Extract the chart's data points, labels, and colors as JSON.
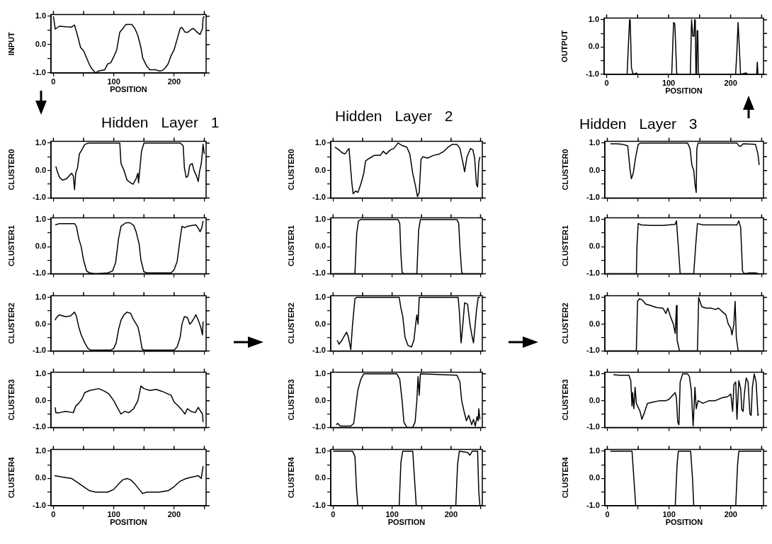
{
  "chart_data": [
    {
      "type": "line",
      "ylabel": "INPUT",
      "xlabel": "POSITION",
      "color": "#000000",
      "marker": "none",
      "xlim": [
        -4,
        253
      ],
      "ylim": [
        -1,
        1.06
      ],
      "xticks": [
        0,
        {
          "value": 50,
          "label": null
        },
        100,
        {
          "value": 150,
          "label": null
        },
        200,
        {
          "value": 250,
          "label": null
        }
      ],
      "yticks": [
        {
          "value": -1,
          "label": "-1.0"
        },
        {
          "value": -0.5,
          "label": null
        },
        {
          "value": 0,
          "label": "0.0"
        },
        {
          "value": 0.5,
          "label": null
        },
        {
          "value": 1,
          "label": "1.0"
        }
      ],
      "x": [
        0,
        3,
        10,
        20,
        30,
        35,
        40,
        45,
        50,
        55,
        60,
        65,
        70,
        75,
        85,
        90,
        95,
        100,
        105,
        110,
        115,
        120,
        130,
        135,
        140,
        145,
        148,
        155,
        160,
        170,
        175,
        180,
        185,
        190,
        195,
        200,
        205,
        210,
        213,
        218,
        223,
        228,
        232,
        238,
        243,
        247,
        248,
        250
      ],
      "values": [
        1.0,
        0.55,
        0.65,
        0.63,
        0.62,
        0.69,
        0.32,
        -0.1,
        -0.22,
        -0.47,
        -0.72,
        -0.89,
        -1.0,
        -0.93,
        -0.89,
        -0.68,
        -0.64,
        -0.43,
        -0.18,
        0.44,
        0.57,
        0.71,
        0.71,
        0.57,
        0.32,
        -0.1,
        -0.47,
        -0.77,
        -0.89,
        -0.89,
        -0.93,
        -0.92,
        -0.83,
        -0.68,
        -0.39,
        -0.18,
        0.19,
        0.57,
        0.61,
        0.44,
        0.44,
        0.53,
        0.57,
        0.44,
        0.36,
        0.57,
        0.94,
        1.0
      ]
    },
    {
      "type": "line",
      "ylabel": "OUTPUT",
      "xlabel": "POSITION",
      "color": "#000000",
      "marker": "none",
      "xlim": [
        -4,
        253
      ],
      "ylim": [
        -1,
        1.06
      ],
      "xticks": [
        0,
        {
          "value": 50,
          "label": null
        },
        100,
        {
          "value": 150,
          "label": null
        },
        200,
        {
          "value": 250,
          "label": null
        }
      ],
      "yticks": [
        {
          "value": -1,
          "label": "-1.0"
        },
        {
          "value": -0.5,
          "label": null
        },
        {
          "value": 0,
          "label": "0.0"
        },
        {
          "value": 0.5,
          "label": null
        },
        {
          "value": 1,
          "label": "1.0"
        }
      ],
      "x": [
        0,
        33,
        34,
        37,
        38,
        39,
        40,
        42,
        44,
        48,
        50,
        105,
        108,
        110,
        113,
        115,
        135,
        137,
        139,
        141,
        142,
        143,
        144,
        145,
        146,
        147,
        148,
        208,
        210,
        212,
        214,
        216,
        225,
        227,
        242,
        243,
        244,
        250
      ],
      "values": [
        -1,
        -1,
        -0.5,
        1,
        1,
        0.15,
        -0.75,
        -0.95,
        -1,
        -0.95,
        -1,
        -1,
        0.9,
        0.85,
        -0.95,
        -1,
        -1,
        1,
        0.4,
        0.4,
        1,
        1,
        -1,
        -1,
        0.6,
        0.6,
        -1,
        -1,
        -0.2,
        0.9,
        0,
        -1,
        -0.95,
        -1,
        -1,
        -0.55,
        -1,
        -1
      ]
    },
    {
      "type": "line",
      "title": "Hidden Layer 1",
      "ylabel": "CLUSTER0",
      "tick_labels": "y",
      "color": "#000000",
      "marker": "none",
      "xlim": [
        -4,
        253
      ],
      "ylim": [
        -1,
        1.06
      ],
      "xticks": [
        0,
        {
          "value": 50,
          "label": null
        },
        100,
        {
          "value": 150,
          "label": null
        },
        200,
        {
          "value": 250,
          "label": null
        }
      ],
      "yticks": [
        {
          "value": -1,
          "label": "-1.0"
        },
        {
          "value": -0.5,
          "label": null
        },
        {
          "value": 0,
          "label": "0.0"
        },
        {
          "value": 0.5,
          "label": null
        },
        {
          "value": 1,
          "label": "1.0"
        }
      ],
      "x": [
        4,
        6,
        10,
        15,
        22,
        30,
        33,
        35,
        37,
        40,
        43,
        47,
        52,
        58,
        110,
        112,
        117,
        122,
        128,
        132,
        137,
        140,
        141,
        143,
        146,
        150,
        210,
        215,
        217,
        220,
        223,
        226,
        230,
        233,
        237,
        240,
        242,
        245,
        248,
        250
      ],
      "values": [
        0.15,
        0,
        -0.25,
        -0.35,
        -0.3,
        -0.1,
        -0.2,
        -0.7,
        -0.1,
        0.1,
        0.6,
        0.75,
        0.95,
        1,
        1,
        0.25,
        0,
        -0.35,
        -0.45,
        -0.5,
        -0.3,
        -0.1,
        -0.45,
        0,
        0.7,
        1,
        1,
        0.9,
        0.1,
        -0.25,
        -0.2,
        0.2,
        0.25,
        0,
        -0.2,
        -0.4,
        -0.05,
        0.25,
        0.95,
        0.6
      ]
    },
    {
      "type": "line",
      "ylabel": "CLUSTER1",
      "tick_labels": "y",
      "color": "#000000",
      "marker": "none",
      "xlim": [
        -4,
        253
      ],
      "ylim": [
        -1,
        1.06
      ],
      "xticks": [
        0,
        {
          "value": 50,
          "label": null
        },
        100,
        {
          "value": 150,
          "label": null
        },
        200,
        {
          "value": 250,
          "label": null
        }
      ],
      "yticks": [
        {
          "value": -1,
          "label": "-1.0"
        },
        {
          "value": -0.5,
          "label": null
        },
        {
          "value": 0,
          "label": "0.0"
        },
        {
          "value": 0.5,
          "label": null
        },
        {
          "value": 1,
          "label": "1.0"
        }
      ],
      "x": [
        3,
        10,
        35,
        38,
        42,
        46,
        50,
        55,
        60,
        70,
        90,
        98,
        103,
        108,
        112,
        120,
        127,
        133,
        137,
        142,
        145,
        150,
        155,
        195,
        200,
        205,
        210,
        213,
        217,
        222,
        230,
        236,
        240,
        243,
        246,
        248
      ],
      "values": [
        0.8,
        0.85,
        0.85,
        0.75,
        0.3,
        0,
        -0.5,
        -0.9,
        -0.97,
        -1,
        -0.97,
        -0.9,
        -0.6,
        0.3,
        0.75,
        0.88,
        0.88,
        0.78,
        0.55,
        0.1,
        -0.5,
        -0.93,
        -0.97,
        -0.97,
        -0.85,
        -0.55,
        0.3,
        0.75,
        0.7,
        0.75,
        0.78,
        0.8,
        0.68,
        0.55,
        0.7,
        0.95
      ]
    },
    {
      "type": "line",
      "ylabel": "CLUSTER2",
      "tick_labels": "y",
      "color": "#000000",
      "marker": "none",
      "xlim": [
        -4,
        253
      ],
      "ylim": [
        -1,
        1.06
      ],
      "xticks": [
        0,
        {
          "value": 50,
          "label": null
        },
        100,
        {
          "value": 150,
          "label": null
        },
        200,
        {
          "value": 250,
          "label": null
        }
      ],
      "yticks": [
        {
          "value": -1,
          "label": "-1.0"
        },
        {
          "value": -0.5,
          "label": null
        },
        {
          "value": 0,
          "label": "0.0"
        },
        {
          "value": 0.5,
          "label": null
        },
        {
          "value": 1,
          "label": "1.0"
        }
      ],
      "x": [
        3,
        5,
        10,
        20,
        28,
        35,
        38,
        42,
        46,
        52,
        57,
        62,
        95,
        100,
        104,
        108,
        112,
        117,
        122,
        128,
        132,
        140,
        143,
        147,
        150,
        200,
        205,
        210,
        213,
        217,
        222,
        226,
        230,
        236,
        240,
        244,
        247,
        248
      ],
      "values": [
        0.15,
        0.25,
        0.35,
        0.28,
        0.3,
        0.45,
        0.3,
        -0.1,
        -0.4,
        -0.7,
        -0.9,
        -0.97,
        -0.97,
        -0.9,
        -0.7,
        -0.2,
        0.15,
        0.35,
        0.45,
        0.4,
        0.2,
        -0.1,
        -0.4,
        -0.93,
        -0.97,
        -0.97,
        -0.85,
        -0.5,
        0,
        0.28,
        0.25,
        0,
        0.1,
        0.35,
        0.15,
        -0.1,
        -0.4,
        0.1
      ]
    },
    {
      "type": "line",
      "ylabel": "CLUSTER3",
      "tick_labels": "y",
      "color": "#000000",
      "marker": "none",
      "xlim": [
        -4,
        253
      ],
      "ylim": [
        -1,
        1.06
      ],
      "xticks": [
        0,
        {
          "value": 50,
          "label": null
        },
        100,
        {
          "value": 150,
          "label": null
        },
        200,
        {
          "value": 250,
          "label": null
        }
      ],
      "yticks": [
        {
          "value": -1,
          "label": "-1.0"
        },
        {
          "value": -0.5,
          "label": null
        },
        {
          "value": 0,
          "label": "0.0"
        },
        {
          "value": 0.5,
          "label": null
        },
        {
          "value": 1,
          "label": "1.0"
        }
      ],
      "x": [
        3,
        4,
        10,
        20,
        33,
        37,
        42,
        47,
        52,
        60,
        75,
        85,
        92,
        100,
        107,
        112,
        118,
        125,
        133,
        140,
        145,
        150,
        160,
        170,
        180,
        195,
        200,
        207,
        213,
        218,
        222,
        228,
        235,
        240,
        244,
        247,
        248
      ],
      "values": [
        -0.25,
        -0.45,
        -0.45,
        -0.4,
        -0.45,
        -0.2,
        -0.1,
        0.05,
        0.3,
        0.38,
        0.45,
        0.35,
        0.25,
        0,
        -0.3,
        -0.5,
        -0.4,
        -0.45,
        -0.3,
        0,
        0.55,
        0.45,
        0.38,
        0.42,
        0.35,
        0.2,
        -0.05,
        -0.2,
        -0.35,
        -0.5,
        -0.3,
        -0.4,
        -0.45,
        -0.25,
        -0.4,
        -0.5,
        -0.8
      ]
    },
    {
      "type": "line",
      "ylabel": "CLUSTER4",
      "xlabel": "POSITION",
      "color": "#000000",
      "marker": "none",
      "xlim": [
        -4,
        253
      ],
      "ylim": [
        -1,
        1.06
      ],
      "xticks": [
        0,
        {
          "value": 50,
          "label": null
        },
        100,
        {
          "value": 150,
          "label": null
        },
        200,
        {
          "value": 250,
          "label": null
        }
      ],
      "yticks": [
        {
          "value": -1,
          "label": "-1.0"
        },
        {
          "value": -0.5,
          "label": null
        },
        {
          "value": 0,
          "label": "0.0"
        },
        {
          "value": 0.5,
          "label": null
        },
        {
          "value": 1,
          "label": "1.0"
        }
      ],
      "x": [
        2,
        15,
        30,
        40,
        50,
        60,
        70,
        90,
        100,
        108,
        115,
        122,
        128,
        135,
        142,
        148,
        155,
        175,
        190,
        200,
        210,
        220,
        230,
        240,
        245,
        248
      ],
      "values": [
        0.1,
        0.05,
        0,
        -0.15,
        -0.3,
        -0.45,
        -0.5,
        -0.5,
        -0.4,
        -0.2,
        -0.05,
        0,
        -0.05,
        -0.2,
        -0.4,
        -0.55,
        -0.5,
        -0.5,
        -0.45,
        -0.3,
        -0.1,
        0,
        0.05,
        0.1,
        0,
        0.45
      ]
    },
    {
      "type": "line",
      "title": "Hidden Layer 2",
      "ylabel": "CLUSTER0",
      "tick_labels": "y",
      "color": "#000000",
      "marker": "none",
      "xlim": [
        -4,
        253
      ],
      "ylim": [
        -1,
        1.06
      ],
      "xticks": [
        0,
        {
          "value": 50,
          "label": null
        },
        100,
        {
          "value": 150,
          "label": null
        },
        200,
        {
          "value": 250,
          "label": null
        }
      ],
      "yticks": [
        {
          "value": -1,
          "label": "-1.0"
        },
        {
          "value": -0.5,
          "label": null
        },
        {
          "value": 0,
          "label": "0.0"
        },
        {
          "value": 0.5,
          "label": null
        },
        {
          "value": 1,
          "label": "1.0"
        }
      ],
      "x": [
        3,
        10,
        15,
        20,
        25,
        27,
        30,
        32,
        34,
        38,
        42,
        47,
        52,
        55,
        62,
        70,
        80,
        85,
        90,
        97,
        103,
        110,
        118,
        125,
        130,
        135,
        140,
        143,
        146,
        149,
        152,
        160,
        170,
        180,
        188,
        195,
        202,
        210,
        215,
        220,
        223,
        227,
        233,
        237,
        240,
        243,
        245,
        247,
        249
      ],
      "values": [
        0.85,
        0.75,
        0.65,
        0.6,
        0.75,
        0.8,
        0,
        -0.5,
        -0.85,
        -0.75,
        -0.8,
        -0.5,
        -0.1,
        0.35,
        0.45,
        0.55,
        0.55,
        0.7,
        0.6,
        0.75,
        0.8,
        1,
        0.9,
        0.85,
        0.6,
        -0.1,
        -0.6,
        -0.95,
        -0.8,
        0.4,
        0.5,
        0.45,
        0.55,
        0.6,
        0.7,
        0.85,
        0.95,
        0.95,
        0.8,
        0.3,
        -0.05,
        0.5,
        0.8,
        0.75,
        0.45,
        -0.5,
        -0.6,
        0.3,
        0.5
      ]
    },
    {
      "type": "line",
      "ylabel": "CLUSTER1",
      "tick_labels": "y",
      "color": "#000000",
      "marker": "none",
      "xlim": [
        -4,
        253
      ],
      "ylim": [
        -1,
        1.06
      ],
      "xticks": [
        0,
        {
          "value": 50,
          "label": null
        },
        100,
        {
          "value": 150,
          "label": null
        },
        200,
        {
          "value": 250,
          "label": null
        }
      ],
      "yticks": [
        {
          "value": -1,
          "label": "-1.0"
        },
        {
          "value": -0.5,
          "label": null
        },
        {
          "value": 0,
          "label": "0.0"
        },
        {
          "value": 0.5,
          "label": null
        },
        {
          "value": 1,
          "label": "1.0"
        }
      ],
      "x": [
        0,
        37,
        40,
        43,
        47,
        110,
        113,
        115,
        117,
        120,
        142,
        145,
        148,
        210,
        213,
        215,
        218,
        220,
        250
      ],
      "values": [
        -1,
        -1,
        0.5,
        0.95,
        1,
        1,
        0.85,
        -0.3,
        -0.95,
        -1,
        -1,
        0.6,
        1,
        1,
        0.85,
        0,
        -0.95,
        -1,
        -1
      ]
    },
    {
      "type": "line",
      "ylabel": "CLUSTER2",
      "tick_labels": "y",
      "color": "#000000",
      "marker": "none",
      "xlim": [
        -4,
        253
      ],
      "ylim": [
        -1,
        1.06
      ],
      "xticks": [
        0,
        {
          "value": 50,
          "label": null
        },
        100,
        {
          "value": 150,
          "label": null
        },
        200,
        {
          "value": 250,
          "label": null
        }
      ],
      "yticks": [
        {
          "value": -1,
          "label": "-1.0"
        },
        {
          "value": -0.5,
          "label": null
        },
        {
          "value": 0,
          "label": "0.0"
        },
        {
          "value": 0.5,
          "label": null
        },
        {
          "value": 1,
          "label": "1.0"
        }
      ],
      "x": [
        7,
        10,
        15,
        20,
        23,
        26,
        30,
        33,
        37,
        40,
        112,
        115,
        118,
        122,
        127,
        133,
        137,
        140,
        142,
        144,
        146,
        212,
        214,
        217,
        220,
        223,
        228,
        232,
        236,
        238,
        241,
        243,
        246,
        249
      ],
      "values": [
        -0.6,
        -0.75,
        -0.6,
        -0.4,
        -0.3,
        -0.5,
        -0.95,
        0,
        0.95,
        1,
        1,
        0.6,
        0.3,
        -0.5,
        -0.8,
        -0.85,
        -0.6,
        0,
        0.35,
        0,
        1,
        1,
        0.5,
        -0.7,
        0,
        0.8,
        0.75,
        0,
        -0.5,
        -0.7,
        0,
        0.5,
        1,
        1
      ]
    },
    {
      "type": "line",
      "ylabel": "CLUSTER3",
      "tick_labels": "y",
      "color": "#000000",
      "marker": "none",
      "xlim": [
        -4,
        253
      ],
      "ylim": [
        -1,
        1.06
      ],
      "xticks": [
        0,
        {
          "value": 50,
          "label": null
        },
        100,
        {
          "value": 150,
          "label": null
        },
        200,
        {
          "value": 250,
          "label": null
        }
      ],
      "yticks": [
        {
          "value": -1,
          "label": "-1.0"
        },
        {
          "value": -0.5,
          "label": null
        },
        {
          "value": 0,
          "label": "0.0"
        },
        {
          "value": 0.5,
          "label": null
        },
        {
          "value": 1,
          "label": "1.0"
        }
      ],
      "x": [
        5,
        8,
        12,
        30,
        35,
        38,
        42,
        47,
        52,
        108,
        113,
        117,
        120,
        125,
        135,
        139,
        142,
        144,
        146,
        148,
        210,
        215,
        218,
        222,
        226,
        230,
        235,
        238,
        241,
        244,
        246,
        247,
        249
      ],
      "values": [
        -0.9,
        -0.85,
        -0.95,
        -0.95,
        -0.85,
        -0.3,
        0.4,
        0.8,
        1,
        1,
        0.8,
        0,
        -0.8,
        -1,
        -1,
        -0.8,
        0,
        0.9,
        0.2,
        1,
        0.95,
        0.7,
        0,
        -0.4,
        -0.75,
        -0.55,
        -0.9,
        -0.7,
        -0.95,
        -0.6,
        -0.75,
        -0.3,
        -0.7
      ]
    },
    {
      "type": "line",
      "ylabel": "CLUSTER4",
      "xlabel": "POSITION",
      "color": "#000000",
      "marker": "none",
      "xlim": [
        -4,
        253
      ],
      "ylim": [
        -1,
        1.06
      ],
      "xticks": [
        0,
        {
          "value": 50,
          "label": null
        },
        100,
        {
          "value": 150,
          "label": null
        },
        200,
        {
          "value": 250,
          "label": null
        }
      ],
      "yticks": [
        {
          "value": -1,
          "label": "-1.0"
        },
        {
          "value": -0.5,
          "label": null
        },
        {
          "value": 0,
          "label": "0.0"
        },
        {
          "value": 0.5,
          "label": null
        },
        {
          "value": 1,
          "label": "1.0"
        }
      ],
      "x": [
        0,
        33,
        37,
        40,
        42,
        112,
        115,
        118,
        135,
        138,
        141,
        208,
        211,
        214,
        228,
        232,
        236,
        245,
        247,
        249
      ],
      "values": [
        1,
        1,
        0.8,
        -0.5,
        -1,
        -1,
        0.6,
        1,
        1,
        0,
        -1,
        -1,
        0.5,
        1,
        0.95,
        0.85,
        1,
        1,
        -0.5,
        -1
      ]
    },
    {
      "type": "line",
      "title": "Hidden Layer 3",
      "ylabel": "CLUSTER0",
      "tick_labels": "y",
      "color": "#000000",
      "marker": "none",
      "xlim": [
        -4,
        253
      ],
      "ylim": [
        -1,
        1.06
      ],
      "xticks": [
        0,
        {
          "value": 50,
          "label": null
        },
        100,
        {
          "value": 150,
          "label": null
        },
        200,
        {
          "value": 250,
          "label": null
        }
      ],
      "yticks": [
        {
          "value": -1,
          "label": "-1.0"
        },
        {
          "value": -0.5,
          "label": null
        },
        {
          "value": 0,
          "label": "0.0"
        },
        {
          "value": 0.5,
          "label": null
        },
        {
          "value": 1,
          "label": "1.0"
        }
      ],
      "x": [
        5,
        15,
        25,
        33,
        37,
        39,
        42,
        46,
        50,
        54,
        130,
        134,
        137,
        140,
        142,
        144,
        145,
        147,
        150,
        210,
        213,
        216,
        220,
        240,
        244,
        246
      ],
      "values": [
        0.97,
        0.97,
        0.95,
        0.9,
        0,
        -0.3,
        -0.1,
        0.5,
        0.95,
        1,
        1,
        0.8,
        0.2,
        0,
        -0.5,
        -0.8,
        0.8,
        1,
        1,
        1,
        0.9,
        0.88,
        0.97,
        0.95,
        0.6,
        0.2
      ]
    },
    {
      "type": "line",
      "ylabel": "CLUSTER1",
      "tick_labels": "y",
      "color": "#000000",
      "marker": "none",
      "xlim": [
        -4,
        253
      ],
      "ylim": [
        -1,
        1.06
      ],
      "xticks": [
        0,
        {
          "value": 50,
          "label": null
        },
        100,
        {
          "value": 150,
          "label": null
        },
        200,
        {
          "value": 250,
          "label": null
        }
      ],
      "yticks": [
        {
          "value": -1,
          "label": "-1.0"
        },
        {
          "value": -0.5,
          "label": null
        },
        {
          "value": 0,
          "label": "0.0"
        },
        {
          "value": 0.5,
          "label": null
        },
        {
          "value": 1,
          "label": "1.0"
        }
      ],
      "x": [
        0,
        47,
        48,
        50,
        55,
        70,
        90,
        110,
        112,
        115,
        118,
        140,
        143,
        146,
        155,
        190,
        210,
        213,
        216,
        219,
        222,
        230,
        240,
        245
      ],
      "values": [
        -1,
        -1,
        0,
        0.85,
        0.8,
        0.78,
        0.78,
        0.82,
        0.95,
        0,
        -1,
        -1,
        0,
        0.85,
        0.8,
        0.8,
        0.8,
        0.95,
        0.7,
        -0.9,
        -1,
        -0.97,
        -0.97,
        -1
      ]
    },
    {
      "type": "line",
      "ylabel": "CLUSTER2",
      "tick_labels": "y",
      "color": "#000000",
      "marker": "none",
      "xlim": [
        -4,
        253
      ],
      "ylim": [
        -1,
        1.06
      ],
      "xticks": [
        0,
        {
          "value": 50,
          "label": null
        },
        100,
        {
          "value": 150,
          "label": null
        },
        200,
        {
          "value": 250,
          "label": null
        }
      ],
      "yticks": [
        {
          "value": -1,
          "label": "-1.0"
        },
        {
          "value": -0.5,
          "label": null
        },
        {
          "value": 0,
          "label": "0.0"
        },
        {
          "value": 0.5,
          "label": null
        },
        {
          "value": 1,
          "label": "1.0"
        }
      ],
      "x": [
        0,
        47,
        49,
        52,
        57,
        62,
        70,
        80,
        90,
        95,
        98,
        102,
        107,
        110,
        112,
        113,
        117,
        146,
        148,
        153,
        160,
        168,
        175,
        180,
        187,
        192,
        196,
        200,
        202,
        205,
        207,
        209,
        212,
        250
      ],
      "values": [
        -1,
        -1,
        0.85,
        0.95,
        0.9,
        0.75,
        0.7,
        0.62,
        0.6,
        0.4,
        0.6,
        0.3,
        0,
        -0.35,
        0.7,
        -0.6,
        -1,
        -1,
        1,
        0.65,
        0.6,
        0.6,
        0.55,
        0.6,
        0.45,
        0.35,
        0,
        -0.15,
        -0.4,
        0,
        0.85,
        -0.5,
        -1,
        -1
      ]
    },
    {
      "type": "line",
      "ylabel": "CLUSTER3",
      "tick_labels": "y",
      "color": "#000000",
      "marker": "none",
      "xlim": [
        -4,
        253
      ],
      "ylim": [
        -1,
        1.06
      ],
      "xticks": [
        0,
        {
          "value": 50,
          "label": null
        },
        100,
        {
          "value": 150,
          "label": null
        },
        200,
        {
          "value": 250,
          "label": null
        }
      ],
      "yticks": [
        {
          "value": -1,
          "label": "-1.0"
        },
        {
          "value": -0.5,
          "label": null
        },
        {
          "value": 0,
          "label": "0.0"
        },
        {
          "value": 0.5,
          "label": null
        },
        {
          "value": 1,
          "label": "1.0"
        }
      ],
      "x": [
        10,
        20,
        35,
        38,
        40,
        41,
        43,
        45,
        47,
        53,
        56,
        60,
        65,
        75,
        85,
        95,
        100,
        106,
        110,
        112,
        114,
        116,
        118,
        122,
        130,
        133,
        136,
        139,
        142,
        144,
        147,
        155,
        165,
        175,
        185,
        195,
        200,
        203,
        205,
        208,
        210,
        213,
        216,
        218,
        220,
        222,
        225,
        228,
        231,
        233,
        235,
        238,
        241,
        244,
        245
      ],
      "values": [
        0.97,
        0.95,
        0.95,
        0.75,
        -0.2,
        0.3,
        -0.3,
        0.5,
        -0.1,
        -0.4,
        -0.7,
        -0.45,
        -0.1,
        -0.05,
        0,
        0,
        0.05,
        0.2,
        0.3,
        0.1,
        -0.8,
        -0.9,
        0.7,
        1,
        1,
        0.9,
        0.4,
        -0.95,
        0.5,
        -0.3,
        0,
        -0.1,
        0,
        0,
        0.1,
        0.15,
        0.25,
        -0.4,
        0.6,
        0.7,
        -0.7,
        0.75,
        0.45,
        -0.35,
        -0.4,
        0.25,
        0.85,
        0.7,
        -0.5,
        -0.55,
        0.5,
        1,
        0.7,
        -0.55,
        -0.5
      ]
    },
    {
      "type": "line",
      "ylabel": "CLUSTER4",
      "xlabel": "POSITION",
      "color": "#000000",
      "marker": "none",
      "xlim": [
        -4,
        253
      ],
      "ylim": [
        -1,
        1.06
      ],
      "xticks": [
        0,
        {
          "value": 50,
          "label": null
        },
        100,
        {
          "value": 150,
          "label": null
        },
        200,
        {
          "value": 250,
          "label": null
        }
      ],
      "yticks": [
        {
          "value": -1,
          "label": "-1.0"
        },
        {
          "value": -0.5,
          "label": null
        },
        {
          "value": 0,
          "label": "0.0"
        },
        {
          "value": 0.5,
          "label": null
        },
        {
          "value": 1,
          "label": "1.0"
        }
      ],
      "x": [
        5,
        40,
        43,
        46,
        110,
        113,
        115,
        135,
        138,
        140,
        208,
        211,
        213,
        250
      ],
      "values": [
        1,
        1,
        0,
        -1,
        -1,
        0.5,
        1,
        1,
        0,
        -1,
        -1,
        0.5,
        1,
        1
      ]
    }
  ]
}
